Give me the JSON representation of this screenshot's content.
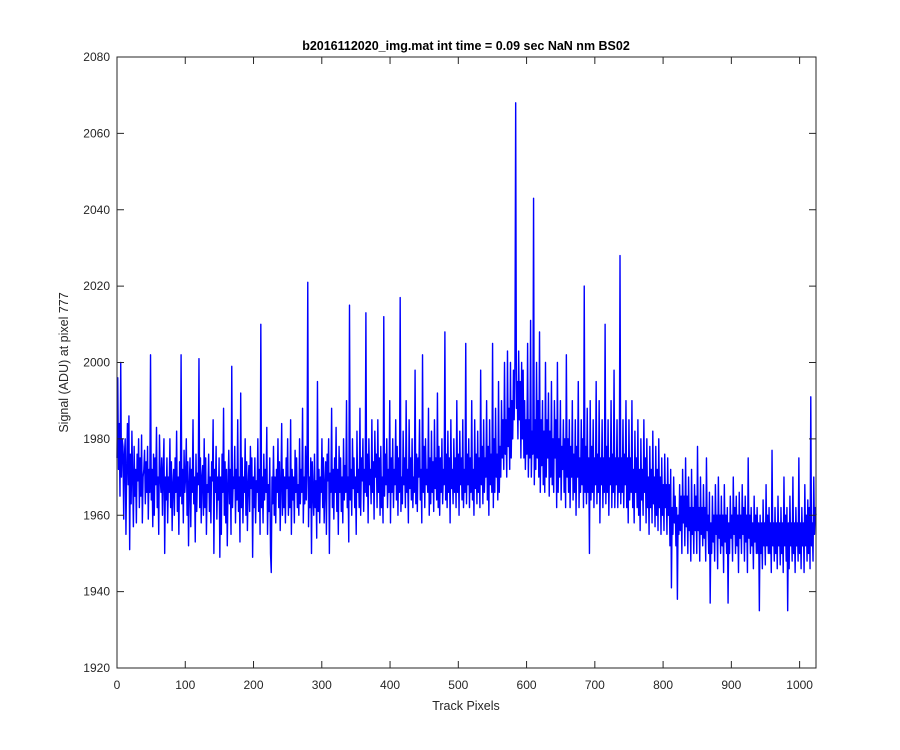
{
  "chart_data": {
    "type": "line",
    "title": "b2016112020_img.mat int time = 0.09 sec  NaN nm BS02",
    "xlabel": "Track Pixels",
    "ylabel": "Signal (ADU) at pixel 777",
    "xlim": [
      0,
      1024
    ],
    "ylim": [
      1920,
      2080
    ],
    "xticks": [
      "0",
      "100",
      "200",
      "300",
      "400",
      "500",
      "600",
      "700",
      "800",
      "900",
      "1000"
    ],
    "yticks": [
      "1920",
      "1940",
      "1960",
      "1980",
      "2000",
      "2020",
      "2040",
      "2060",
      "2080"
    ],
    "grid": false,
    "line_color": "#0000ff",
    "series": [
      {
        "values": [
          1975,
          1996,
          1972,
          1984,
          1965,
          2000,
          1970,
          1980,
          1978,
          1959,
          1976,
          1980,
          1955,
          1972,
          1984,
          1968,
          1986,
          1951,
          1976,
          1963,
          1982,
          1970,
          1957,
          1978,
          1965,
          1972,
          1958,
          1976,
          1969,
          1980,
          1962,
          1975,
          1965,
          1981,
          1958,
          1970,
          1972,
          1977,
          1963,
          1974,
          1966,
          1978,
          1959,
          1972,
          1966,
          2002,
          1964,
          1972,
          1957,
          1976,
          1960,
          1975,
          1968,
          1983,
          1962,
          1970,
          1955,
          1981,
          1970,
          1966,
          1975,
          1960,
          1972,
          1980,
          1950,
          1970,
          1964,
          1975,
          1958,
          1970,
          1966,
          1980,
          1962,
          1974,
          1956,
          1968,
          1972,
          1960,
          1975,
          1966,
          1982,
          1961,
          1970,
          1955,
          1974,
          1965,
          2002,
          1963,
          1972,
          1958,
          1977,
          1966,
          1970,
          1980,
          1960,
          1974,
          1952,
          1968,
          1975,
          1957,
          1972,
          1966,
          1985,
          1963,
          1970,
          1953,
          1976,
          1961,
          1971,
          1968,
          2001,
          1962,
          1975,
          1958,
          1970,
          1973,
          1960,
          1980,
          1962,
          1975,
          1955,
          1968,
          1966,
          1976,
          1961,
          1970,
          1958,
          1974,
          1969,
          1985,
          1950,
          1972,
          1966,
          1978,
          1959,
          1970,
          1964,
          1975,
          1949,
          1970,
          1955,
          1976,
          1966,
          1988,
          1960,
          1974,
          1958,
          1972,
          1952,
          1968,
          1977,
          1963,
          1972,
          1955,
          1999,
          1962,
          1970,
          1967,
          1978,
          1958,
          1972,
          1964,
          1985,
          1961,
          1970,
          1953,
          1992,
          1962,
          1975,
          1958,
          1970,
          1966,
          1980,
          1960,
          1974,
          1956,
          1968,
          1973,
          1961,
          1978,
          1967,
          1975,
          1949,
          1970,
          1962,
          1975,
          1958,
          1969,
          1966,
          1980,
          1961,
          1972,
          1955,
          2010,
          1962,
          1970,
          1958,
          1976,
          1964,
          1972,
          1966,
          1983,
          1955,
          1968,
          1961,
          1975,
          1950,
          1945,
          1970,
          1963,
          1978,
          1960,
          1970,
          1958,
          1972,
          1966,
          1980,
          1962,
          1974,
          1956,
          1968,
          1984,
          1960,
          1972,
          1962,
          1970,
          1958,
          1975,
          1967,
          1980,
          1960,
          1970,
          1962,
          1985,
          1955,
          1972,
          1964,
          1970,
          1958,
          1977,
          1966,
          1975,
          1962,
          1968,
          1960,
          1980,
          1963,
          1972,
          1966,
          1988,
          1958,
          1970,
          1963,
          1978,
          1964,
          1972,
          2021,
          1957,
          1970,
          1962,
          1975,
          1950,
          1974,
          1966,
          1960,
          1976,
          1962,
          1969,
          1954,
          1995,
          1961,
          1972,
          1958,
          1970,
          1966,
          1980,
          1962,
          1975,
          1958,
          1968,
          1974,
          1955,
          1976,
          1969,
          1980,
          1950,
          1971,
          1966,
          1988,
          1962,
          1972,
          1959,
          1975,
          1966,
          1983,
          1961,
          1972,
          1955,
          1978,
          1966,
          1975,
          1961,
          1970,
          1958,
          1980,
          1964,
          1973,
          1966,
          1990,
          1962,
          1970,
          1953,
          2015,
          1964,
          1972,
          1960,
          1980,
          1967,
          1975,
          1962,
          1970,
          1955,
          1982,
          1966,
          1972,
          1962,
          1988,
          1960,
          1975,
          1969,
          1980,
          1961,
          1972,
          1966,
          2013,
          1965,
          1976,
          1958,
          1980,
          1968,
          1972,
          1963,
          1985,
          1966,
          1974,
          1959,
          1982,
          1970,
          1976,
          1962,
          1985,
          1966,
          1975,
          1960,
          1978,
          1962,
          1970,
          1958,
          2012,
          1965,
          1976,
          1968,
          1980,
          1962,
          1972,
          1966,
          1990,
          1958,
          1975,
          1966,
          1980,
          1962,
          1972,
          1968,
          1985,
          1964,
          1978,
          1960,
          1975,
          1966,
          2017,
          1961,
          1970,
          1963,
          1982,
          1968,
          1975,
          1962,
          1990,
          1966,
          1972,
          1958,
          1985,
          1967,
          1975,
          1964,
          1980,
          1962,
          1970,
          1966,
          1998,
          1963,
          1976,
          1961,
          1975,
          1970,
          1985,
          1964,
          1972,
          1958,
          2002,
          1966,
          1978,
          1962,
          1980,
          1968,
          1972,
          1966,
          1988,
          1960,
          1975,
          1963,
          1982,
          1966,
          1974,
          1961,
          1985,
          1967,
          1975,
          1964,
          1992,
          1962,
          1978,
          1960,
          1975,
          1966,
          1980,
          1963,
          1972,
          1968,
          2008,
          1964,
          1976,
          1962,
          1982,
          1966,
          1975,
          1958,
          1985,
          1967,
          1972,
          1963,
          1980,
          1966,
          1975,
          1962,
          1990,
          1966,
          1976,
          1960,
          1982,
          1968,
          1975,
          1964,
          1985,
          1962,
          1972,
          1966,
          2005,
          1963,
          1976,
          1968,
          1980,
          1962,
          1975,
          1966,
          1990,
          1964,
          1972,
          1960,
          1985,
          1967,
          1976,
          1963,
          1982,
          1966,
          1975,
          1962,
          1998,
          1968,
          1978,
          1963,
          1985,
          1966,
          1975,
          1970,
          1990,
          1964,
          1978,
          1960,
          1985,
          1968,
          1976,
          1966,
          2005,
          1962,
          1980,
          1966,
          1988,
          1970,
          1976,
          1964,
          1995,
          1966,
          1978,
          1970,
          1990,
          1975,
          1985,
          1972,
          2000,
          1976,
          1985,
          1970,
          2003,
          1978,
          1988,
          1972,
          2000,
          1975,
          1990,
          1980,
          1998,
          1985,
          2000,
          2068,
          1988,
          1995,
          1980,
          2003,
          1985,
          1995,
          1975,
          2000,
          1980,
          1998,
          1975,
          1990,
          1972,
          1985,
          1976,
          2005,
          1970,
          1985,
          1975,
          2011,
          1970,
          1982,
          1976,
          2043,
          1968,
          1985,
          1972,
          2000,
          1975,
          1990,
          1970,
          2008,
          1966,
          1985,
          1973,
          1990,
          1968,
          1982,
          1966,
          2000,
          1970,
          1985,
          1975,
          1992,
          1965,
          1982,
          1970,
          1995,
          1968,
          1980,
          1966,
          1990,
          1975,
          1985,
          1962,
          2000,
          1966,
          1980,
          1970,
          1990,
          1964,
          1978,
          1972,
          1985,
          1966,
          1980,
          1962,
          2002,
          1970,
          1980,
          1966,
          1985,
          1962,
          1978,
          1970,
          1990,
          1964,
          1976,
          1966,
          1985,
          1960,
          1978,
          1970,
          1995,
          1962,
          1975,
          1966,
          1985,
          1968,
          1980,
          1962,
          2020,
          1966,
          1978,
          1963,
          1988,
          1966,
          1975,
          1950,
          1990,
          1964,
          1978,
          1966,
          1985,
          1962,
          1975,
          1968,
          1995,
          1963,
          1976,
          1966,
          1990,
          1958,
          1975,
          1968,
          1985,
          1962,
          1975,
          1966,
          2010,
          1963,
          1978,
          1966,
          1985,
          1960,
          1975,
          1968,
          1990,
          1962,
          1976,
          1966,
          1998,
          1962,
          1975,
          1968,
          1985,
          1962,
          1975,
          1966,
          2028,
          1963,
          1975,
          1966,
          1985,
          1962,
          1976,
          1968,
          1990,
          1962,
          1975,
          1958,
          1985,
          1964,
          1975,
          1966,
          1990,
          1962,
          1972,
          1958,
          1982,
          1966,
          1975,
          1962,
          1985,
          1960,
          1972,
          1956,
          1980,
          1964,
          1972,
          1960,
          1985,
          1966,
          1975,
          1958,
          1980,
          1962,
          1970,
          1955,
          1978,
          1962,
          1972,
          1958,
          1982,
          1963,
          1970,
          1957,
          1978,
          1960,
          1972,
          1956,
          1980,
          1962,
          1970,
          1955,
          1975,
          1960,
          1968,
          1956,
          1976,
          1962,
          1968,
          1955,
          1975,
          1960,
          1968,
          1952,
          1972,
          1941,
          1962,
          1955,
          1970,
          1958,
          1965,
          1952,
          1962,
          1938,
          1960,
          1955,
          1968,
          1956,
          1965,
          1950,
          1972,
          1958,
          1965,
          1952,
          1975,
          1957,
          1965,
          1950,
          1970,
          1956,
          1962,
          1948,
          1972,
          1955,
          1962,
          1950,
          1968,
          1956,
          1965,
          1950,
          1978,
          1956,
          1962,
          1948,
          1970,
          1955,
          1962,
          1952,
          1968,
          1954,
          1962,
          1948,
          1975,
          1956,
          1960,
          1950,
          1966,
          1937,
          1958,
          1950,
          1965,
          1953,
          1960,
          1948,
          1968,
          1955,
          1960,
          1946,
          1970,
          1954,
          1960,
          1950,
          1965,
          1952,
          1960,
          1945,
          1968,
          1953,
          1960,
          1950,
          1962,
          1937,
          1958,
          1950,
          1965,
          1954,
          1960,
          1948,
          1970,
          1955,
          1962,
          1950,
          1965,
          1952,
          1960,
          1945,
          1966,
          1954,
          1960,
          1950,
          1968,
          1955,
          1962,
          1948,
          1965,
          1953,
          1960,
          1945,
          1975,
          1954,
          1960,
          1950,
          1962,
          1952,
          1958,
          1946,
          1965,
          1953,
          1960,
          1950,
          1962,
          1950,
          1958,
          1935,
          1960,
          1950,
          1958,
          1946,
          1964,
          1952,
          1958,
          1947,
          1968,
          1952,
          1960,
          1950,
          1962,
          1950,
          1958,
          1945,
          1977,
          1952,
          1958,
          1948,
          1962,
          1950,
          1958,
          1946,
          1965,
          1952,
          1958,
          1947,
          1962,
          1950,
          1958,
          1945,
          1970,
          1952,
          1960,
          1948,
          1962,
          1935,
          1958,
          1946,
          1965,
          1952,
          1958,
          1948,
          1970,
          1950,
          1958,
          1945,
          1962,
          1952,
          1958,
          1948,
          1975,
          1950,
          1958,
          1946,
          1962,
          1952,
          1958,
          1945,
          1968,
          1952,
          1960,
          1948,
          1964,
          1950,
          1962,
          1946,
          1991,
          1952,
          1958,
          1948,
          1970,
          1955,
          1962,
          1960
        ]
      }
    ]
  }
}
